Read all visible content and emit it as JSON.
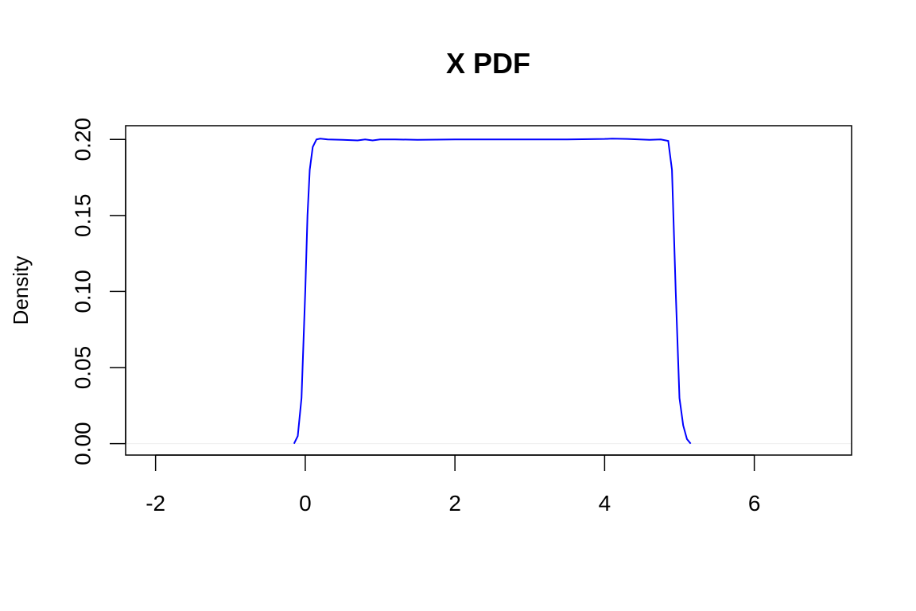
{
  "chart_data": {
    "type": "line",
    "title": "X PDF",
    "xlabel": "",
    "ylabel": "Density",
    "xlim": [
      -2.4,
      7.3
    ],
    "ylim": [
      -0.0075,
      0.209
    ],
    "x_ticks": [
      -2,
      0,
      2,
      4,
      6
    ],
    "x_tick_labels": [
      "-2",
      "0",
      "2",
      "4",
      "6"
    ],
    "y_ticks": [
      0.0,
      0.05,
      0.1,
      0.15,
      0.2
    ],
    "y_tick_labels": [
      "0.00",
      "0.05",
      "0.10",
      "0.15",
      "0.20"
    ],
    "grid": false,
    "colors": {
      "series": "#0000ff",
      "baseline": "#eeeeee",
      "axis": "#000000"
    },
    "series": [
      {
        "x": [
          -0.15,
          -0.1,
          -0.05,
          0.0,
          0.03,
          0.06,
          0.1,
          0.15,
          0.2,
          0.3,
          0.5,
          0.7,
          0.8,
          0.9,
          1.0,
          1.2,
          1.5,
          2.0,
          2.5,
          3.0,
          3.5,
          4.0,
          4.1,
          4.3,
          4.6,
          4.75,
          4.85,
          4.9,
          4.95,
          5.0,
          5.05,
          5.1,
          5.15
        ],
        "y": [
          0.0,
          0.005,
          0.03,
          0.1,
          0.15,
          0.18,
          0.195,
          0.2,
          0.2005,
          0.2,
          0.1997,
          0.1993,
          0.2,
          0.1993,
          0.2,
          0.2,
          0.1997,
          0.2,
          0.2,
          0.2,
          0.2,
          0.2003,
          0.2005,
          0.2003,
          0.1997,
          0.2,
          0.199,
          0.18,
          0.1,
          0.03,
          0.012,
          0.003,
          0.0
        ]
      }
    ]
  }
}
